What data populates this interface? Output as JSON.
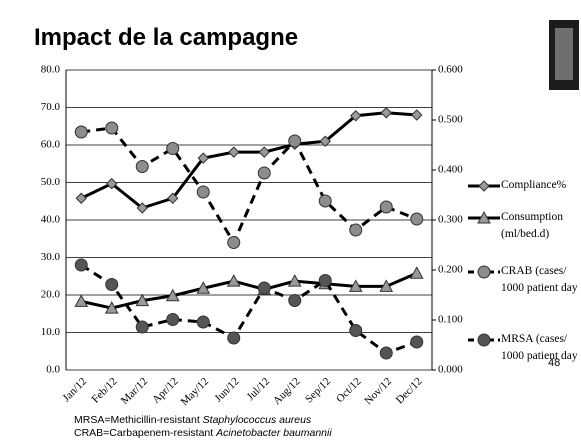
{
  "chart_data": {
    "type": "line",
    "title": "Impact de la campagne",
    "categories": [
      "Jan/12",
      "Feb/12",
      "Mar/12",
      "Apr/12",
      "May/12",
      "Jun/12",
      "Jul/12",
      "Aug/12",
      "Sep/12",
      "Oct/12",
      "Nov/12",
      "Dec/12"
    ],
    "series": [
      {
        "name": "Compliance%",
        "color": "#000000",
        "marker_color": "#9a9a9a",
        "marker": "diamond",
        "dashed": false,
        "axis": "y",
        "values": [
          45.8,
          49.7,
          43.2,
          45.8,
          56.5,
          58.1,
          58.1,
          60.2,
          61.0,
          67.8,
          68.6,
          68.0
        ]
      },
      {
        "name": "Consumption (ml/bed.d)",
        "color": "#000000",
        "marker_color": "#9a9a9a",
        "marker": "triangle",
        "dashed": false,
        "axis": "y",
        "values": [
          18.3,
          16.5,
          18.5,
          19.8,
          21.8,
          23.7,
          21.5,
          23.7,
          23.0,
          22.3,
          22.3,
          25.8
        ]
      },
      {
        "name": "CRAB (cases/ 1000 patient day",
        "color": "#000000",
        "marker_color": "#8c8c8c",
        "marker": "circle",
        "dashed": true,
        "axis": "y2",
        "values": [
          0.476,
          0.484,
          0.407,
          0.443,
          0.356,
          0.255,
          0.394,
          0.458,
          0.338,
          0.28,
          0.326,
          0.302
        ]
      },
      {
        "name": "MRSA (cases/ 1000 patient day",
        "color": "#000000",
        "marker_color": "#555555",
        "marker": "circle",
        "dashed": true,
        "axis": "y2",
        "values": [
          0.21,
          0.171,
          0.086,
          0.101,
          0.096,
          0.064,
          0.164,
          0.139,
          0.179,
          0.079,
          0.034,
          0.056
        ]
      }
    ],
    "ylim": [
      0,
      80
    ],
    "yticks": [
      {
        "value": 0,
        "label": "0.0"
      },
      {
        "value": 10,
        "label": "10.0"
      },
      {
        "value": 20,
        "label": "20.0"
      },
      {
        "value": 30,
        "label": "30.0"
      },
      {
        "value": 40,
        "label": "40.0"
      },
      {
        "value": 50,
        "label": "50.0"
      },
      {
        "value": 60,
        "label": "60.0"
      },
      {
        "value": 70,
        "label": "70.0"
      },
      {
        "value": 80,
        "label": "80.0"
      }
    ],
    "y2lim": [
      0,
      0.6
    ],
    "y2ticks": [
      {
        "value": 0,
        "label": "0.000"
      },
      {
        "value": 0.1,
        "label": "0.100"
      },
      {
        "value": 0.2,
        "label": "0.200"
      },
      {
        "value": 0.3,
        "label": "0.300"
      },
      {
        "value": 0.4,
        "label": "0.400"
      },
      {
        "value": 0.5,
        "label": "0.500"
      },
      {
        "value": 0.6,
        "label": "0.600"
      }
    ],
    "grid": true,
    "legend_position": "right"
  },
  "page_number": "48",
  "footnotes": [
    {
      "text": "MRSA=Methicillin-resistant ",
      "italic": "Staphylococcus aureus"
    },
    {
      "text": "CRAB=Carbapenem-resistant ",
      "italic": "Acinetobacter baumannii"
    }
  ]
}
